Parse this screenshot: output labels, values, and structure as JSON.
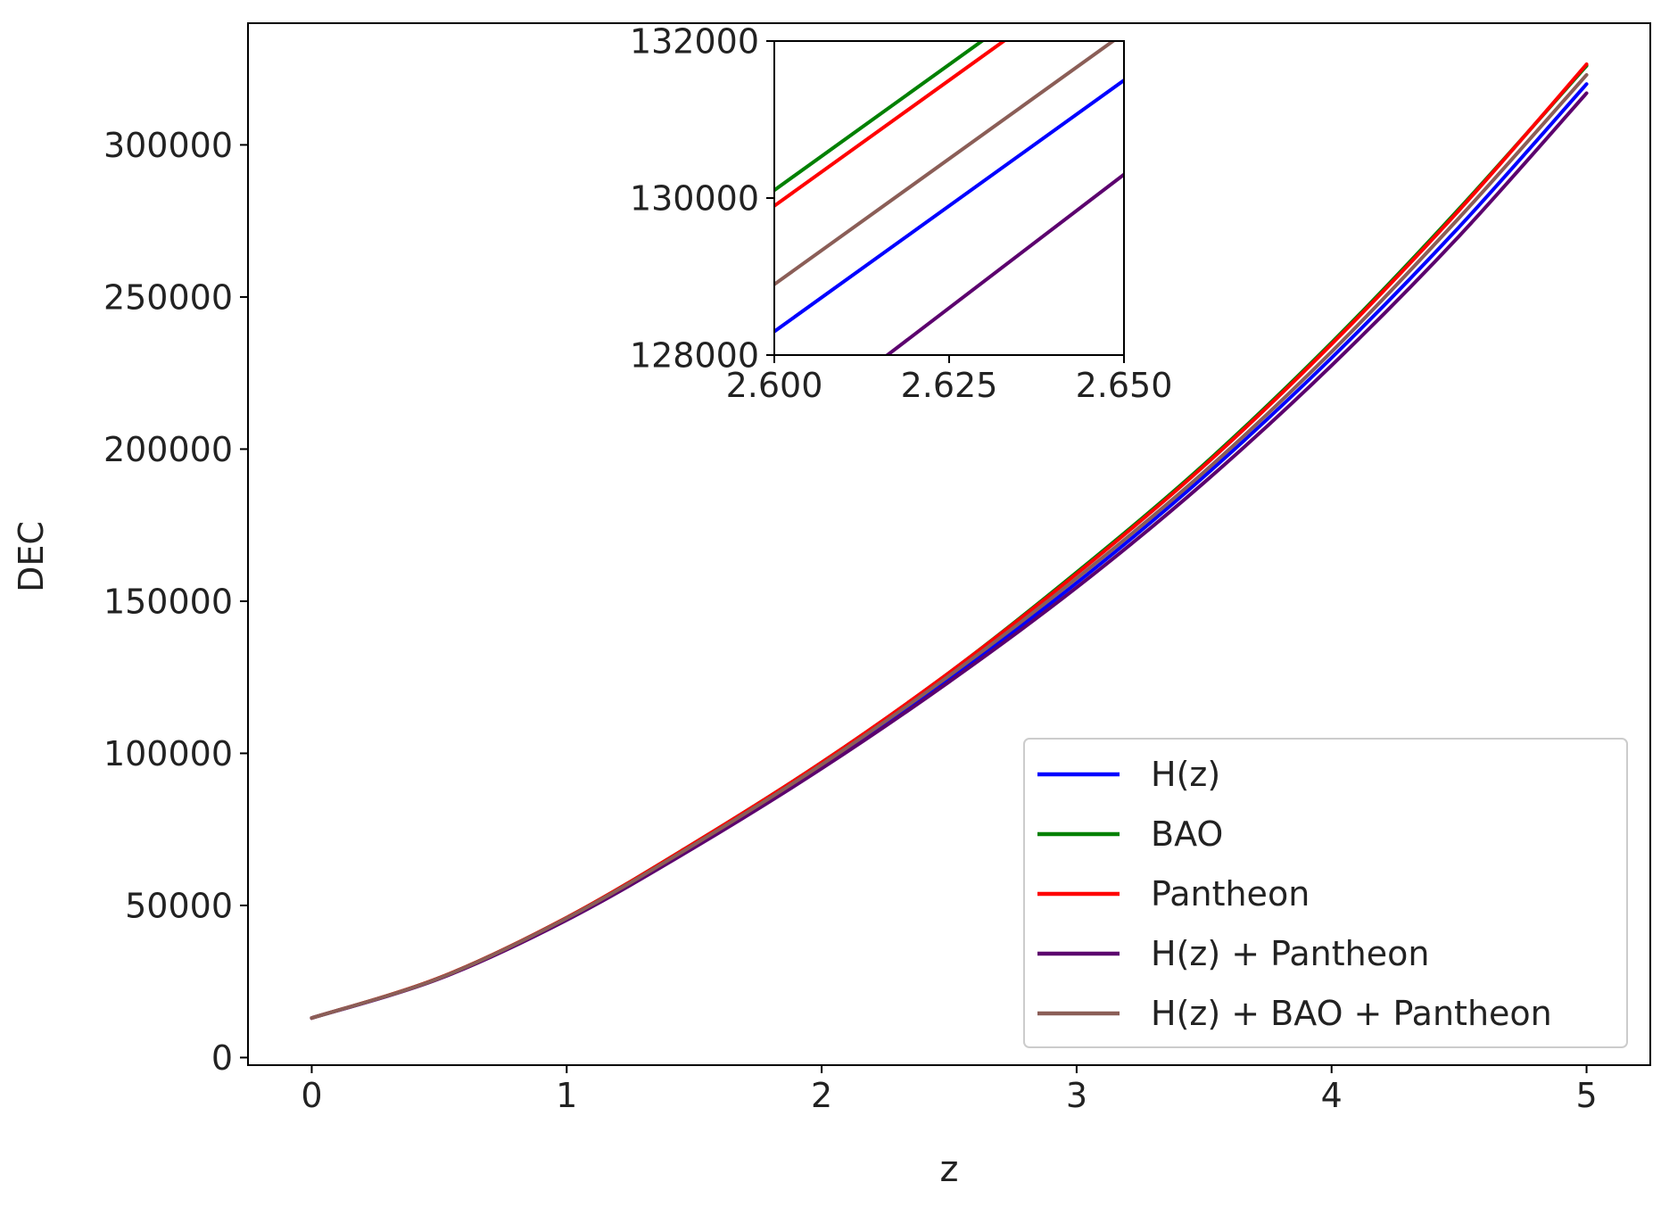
{
  "chart_data": [
    {
      "type": "line",
      "title": "",
      "xlabel": "z",
      "ylabel": "DEC",
      "xlim": [
        -0.25,
        5.25
      ],
      "ylim": [
        -2500,
        340000
      ],
      "xticks": [
        0,
        1,
        2,
        3,
        4,
        5
      ],
      "xtick_labels": [
        "0",
        "1",
        "2",
        "3",
        "4",
        "5"
      ],
      "yticks": [
        0,
        50000,
        100000,
        150000,
        200000,
        250000,
        300000
      ],
      "ytick_labels": [
        "0",
        "50000",
        "100000",
        "150000",
        "200000",
        "250000",
        "300000"
      ],
      "grid": false,
      "legend_position": "lower-right",
      "x": [
        0,
        0.5,
        1,
        1.5,
        2,
        2.5,
        3,
        3.5,
        4,
        4.5,
        5
      ],
      "series": [
        {
          "name": "H(z)",
          "color": "#0000ff",
          "values": [
            13000,
            26000,
            45500,
            69500,
            95500,
            124500,
            156000,
            191000,
            230000,
            273000,
            320000
          ]
        },
        {
          "name": "BAO",
          "color": "#008000",
          "values": [
            13000,
            26200,
            46000,
            70500,
            97000,
            126500,
            159500,
            195000,
            235000,
            279000,
            326000
          ]
        },
        {
          "name": "Pantheon",
          "color": "#ff0000",
          "values": [
            13000,
            26200,
            46000,
            70500,
            97000,
            126500,
            159000,
            194500,
            234500,
            278500,
            326500
          ]
        },
        {
          "name": "H(z) + Pantheon",
          "color": "#5c006e",
          "values": [
            13000,
            25900,
            45200,
            69000,
            95000,
            123500,
            154500,
            189000,
            227500,
            270000,
            317000
          ]
        },
        {
          "name": "H(z) + BAO + Pantheon",
          "color": "#8b5e57",
          "values": [
            13000,
            26100,
            45800,
            70000,
            96300,
            125500,
            157500,
            192500,
            232000,
            276000,
            323000
          ]
        }
      ]
    },
    {
      "type": "line",
      "title": "",
      "xlabel": "",
      "ylabel": "",
      "xlim": [
        2.6,
        2.65
      ],
      "ylim": [
        128000,
        132000
      ],
      "xticks": [
        2.6,
        2.625,
        2.65
      ],
      "xtick_labels": [
        "2.600",
        "2.625",
        "2.650"
      ],
      "yticks": [
        128000,
        130000,
        132000
      ],
      "ytick_labels": [
        "128000",
        "130000",
        "132000"
      ],
      "grid": false,
      "x": [
        2.6,
        2.65
      ],
      "series": [
        {
          "name": "H(z)",
          "color": "#0000ff",
          "values": [
            128300,
            131500
          ]
        },
        {
          "name": "BAO",
          "color": "#008000",
          "values": [
            130100,
            133300
          ]
        },
        {
          "name": "Pantheon",
          "color": "#ff0000",
          "values": [
            129900,
            133100
          ]
        },
        {
          "name": "H(z) + Pantheon",
          "color": "#5c006e",
          "values": [
            126900,
            130300
          ]
        },
        {
          "name": "H(z) + BAO + Pantheon",
          "color": "#8b5e57",
          "values": [
            128900,
            132100
          ]
        }
      ]
    }
  ]
}
